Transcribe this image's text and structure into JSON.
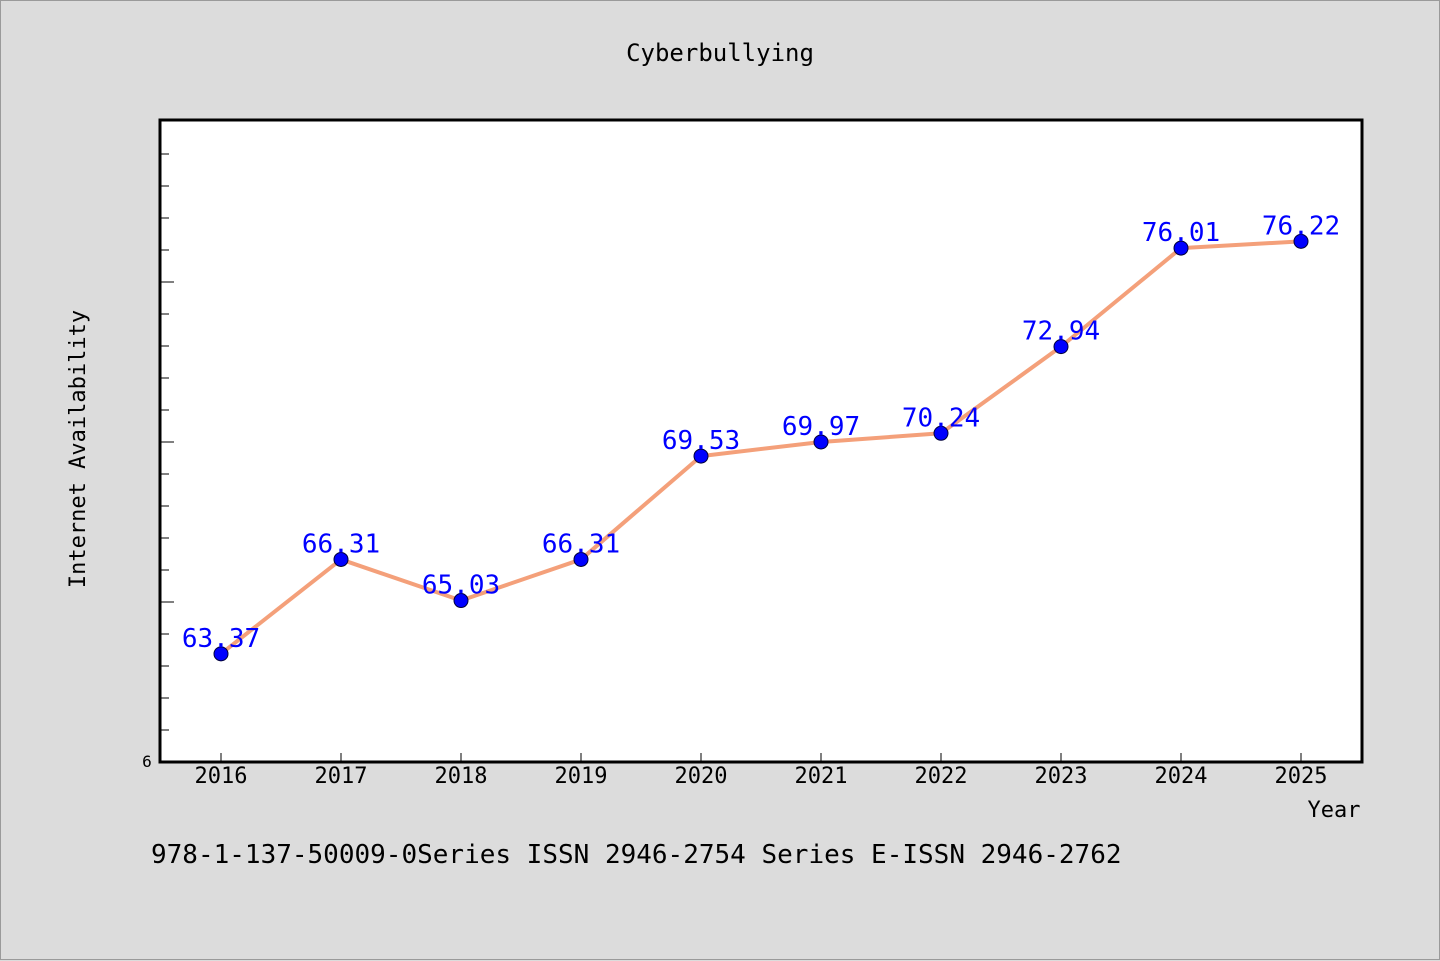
{
  "chart_data": {
    "type": "line",
    "title": "Cyberbullying",
    "xlabel": "Year",
    "ylabel": "Internet Availability",
    "categories": [
      "2016",
      "2017",
      "2018",
      "2019",
      "2020",
      "2021",
      "2022",
      "2023",
      "2024",
      "2025"
    ],
    "series": [
      {
        "values": [
          63.37,
          66.31,
          65.03,
          66.31,
          69.53,
          69.97,
          70.24,
          72.94,
          76.01,
          76.22
        ],
        "labels": [
          "63.37",
          "66.31",
          "65.03",
          "66.31",
          "69.53",
          "69.97",
          "70.24",
          "72.94",
          "76.01",
          "76.22"
        ],
        "line_color": "#f4a07a",
        "marker_color": "#0000ff"
      }
    ],
    "ylim": [
      60,
      80
    ],
    "yticks_labeled": [
      "6"
    ],
    "grid": false,
    "legend": "none"
  },
  "footer": {
    "text": "978-1-137-50009-0Series ISSN 2946-2754 Series E-ISSN 2946-2762"
  }
}
